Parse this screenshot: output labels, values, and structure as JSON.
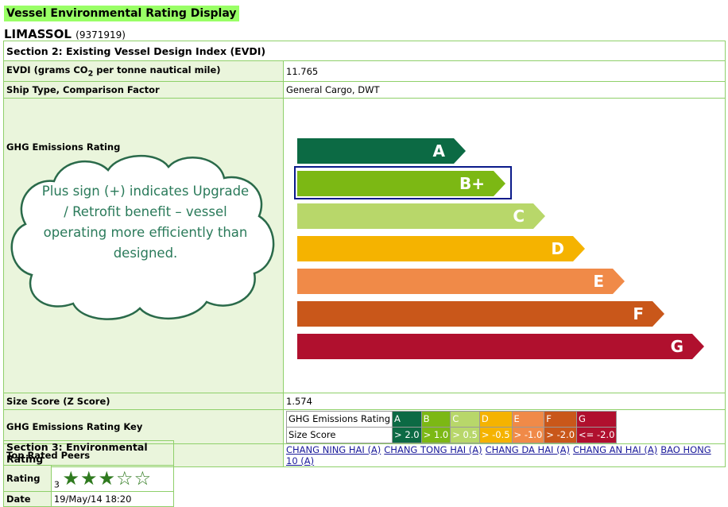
{
  "page_title": "Vessel Environmental Rating Display",
  "vessel": {
    "name": "LIMASSOL",
    "imo": "(9371919)"
  },
  "section2": {
    "title": "Section 2: Existing Vessel Design Index (EVDI)",
    "evdi_label_pre": "EVDI (grams CO",
    "evdi_label_sub": "2",
    "evdi_label_post": " per tonne nautical mile)",
    "evdi_value": "11.765",
    "ship_type_label": "Ship Type, Comparison Factor",
    "ship_type_value": "General Cargo, DWT",
    "ghg_label": "GHG Emissions Rating",
    "ghg_bars": [
      {
        "label": "A",
        "color": "#0c6a44"
      },
      {
        "label": "B+",
        "color": "#7cb814"
      },
      {
        "label": "C",
        "color": "#b8d76a"
      },
      {
        "label": "D",
        "color": "#f5b300"
      },
      {
        "label": "E",
        "color": "#f08a48"
      },
      {
        "label": "F",
        "color": "#c9571a"
      },
      {
        "label": "G",
        "color": "#b0102e"
      }
    ],
    "selected_rating": "B+",
    "size_score_label": "Size Score (Z Score)",
    "size_score_value": "1.574",
    "key_label": "GHG Emissions Rating Key",
    "key": {
      "row1_label": "GHG Emissions Rating",
      "row2_label": "Size Score",
      "grades": [
        "A",
        "B",
        "C",
        "D",
        "E",
        "F",
        "G"
      ],
      "scores": [
        "> 2.0",
        "> 1.0",
        "> 0.5",
        "> -0.5",
        "> -1.0",
        "> -2.0",
        "<= -2.0"
      ],
      "colors": [
        "#0c6a44",
        "#7cb814",
        "#b8d76a",
        "#f5b300",
        "#f08a48",
        "#c9571a",
        "#b0102e"
      ]
    },
    "peers_label": "Top Rated Peers",
    "peers": [
      "CHANG NING HAI (A)",
      "CHANG TONG HAI (A)",
      "CHANG DA HAI (A)",
      "CHANG AN HAI (A)",
      "BAO HONG 10 (A)"
    ]
  },
  "callout": "Plus sign (+) indicates Upgrade / Retrofit benefit – vessel operating more efficiently than designed.",
  "section3": {
    "title": "Section 3: Environmental Rating",
    "rating_label": "Rating",
    "rating_value": "3",
    "rating_stars": 3,
    "rating_max": 5,
    "date_label": "Date",
    "date_value": "19/May/14 18:20"
  }
}
